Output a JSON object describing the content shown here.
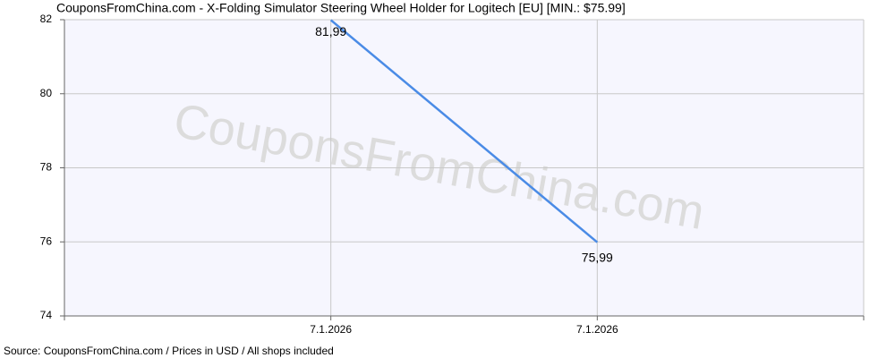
{
  "chart_data": {
    "type": "line",
    "title": "CouponsFromChina.com - X-Folding Simulator Steering Wheel Holder for Logitech [EU] [MIN.: $75.99]",
    "watermark": "CouponsFromChina.com",
    "source": "Source: CouponsFromChina.com / Prices in USD / All shops included",
    "categories": [
      null,
      "7.1.2026",
      "7.1.2026",
      null
    ],
    "values": [
      null,
      81.99,
      75.99,
      null
    ],
    "value_labels": [
      null,
      "81,99",
      "75,99",
      null
    ],
    "color": "#4a8be6",
    "ylim": [
      74,
      82
    ],
    "yticks": [
      74,
      76,
      78,
      80,
      82
    ],
    "grid": true
  }
}
